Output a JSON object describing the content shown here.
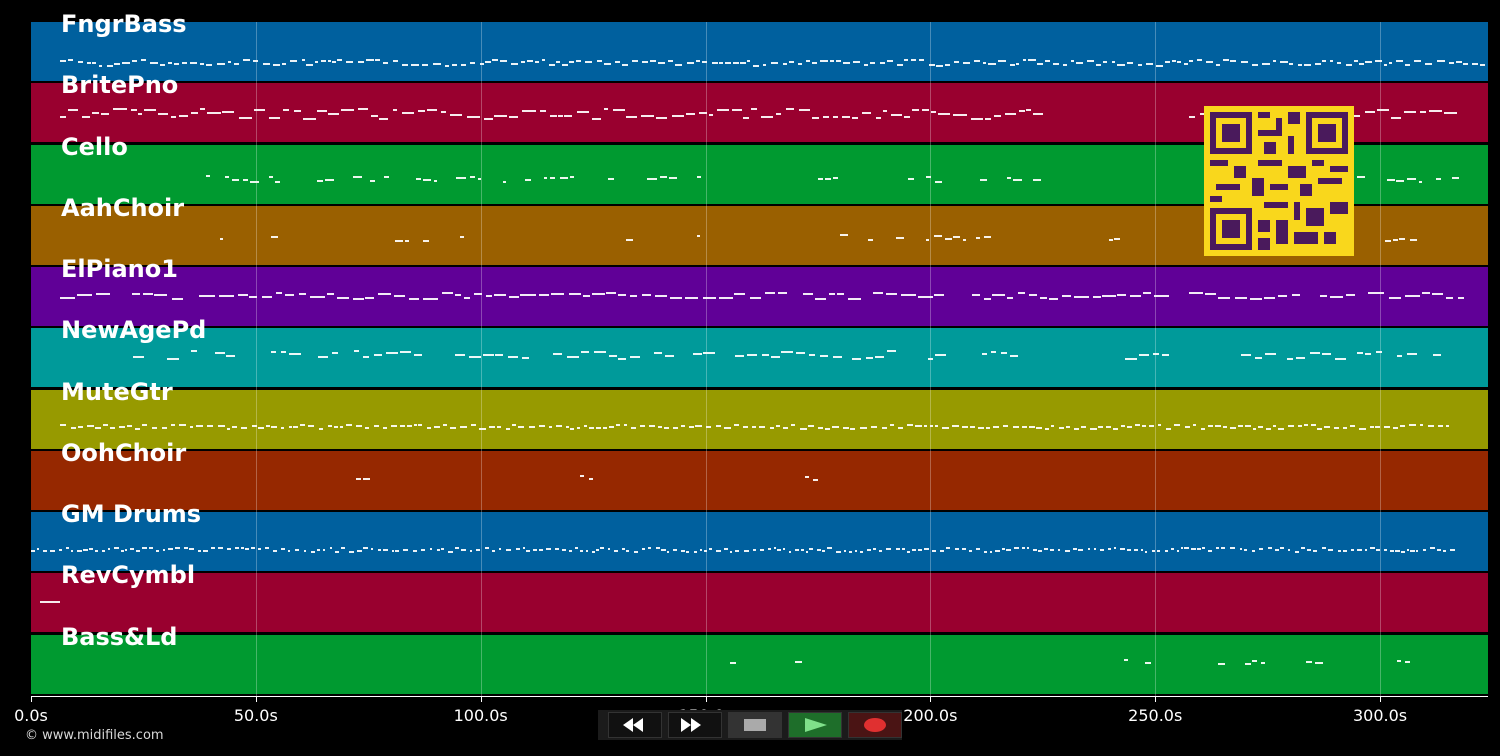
{
  "tracks": [
    {
      "name": "FngrBass",
      "color": "#00609e"
    },
    {
      "name": "BritePno",
      "color": "#99002f"
    },
    {
      "name": "Cello",
      "color": "#009a30"
    },
    {
      "name": "AahChoir",
      "color": "#9a6000"
    },
    {
      "name": "ElPiano1",
      "color": "#600097"
    },
    {
      "name": "NewAgePd",
      "color": "#009a9a"
    },
    {
      "name": "MuteGtr",
      "color": "#979a00"
    },
    {
      "name": "OohChoir",
      "color": "#962800"
    },
    {
      "name": "GM Drums",
      "color": "#00609e"
    },
    {
      "name": "RevCymbl",
      "color": "#99002f"
    },
    {
      "name": "Bass&Ld",
      "color": "#009a30"
    }
  ],
  "timeline": {
    "max_seconds": 324,
    "ticks": [
      "0.0s",
      "50.0s",
      "100.0s",
      "150.0s",
      "200.0s",
      "250.0s",
      "300.0s"
    ],
    "tick_values": [
      0,
      50,
      100,
      150,
      200,
      250,
      300
    ]
  },
  "transport": {
    "rewind_icon": "rewind-icon",
    "forward_icon": "fast-forward-icon",
    "stop_icon": "stop-icon",
    "play_icon": "play-icon",
    "record_icon": "record-icon"
  },
  "copyright": "© www.midifiles.com",
  "overlay": {
    "qr_icon": "qr-code-icon",
    "qr_color": "#f9d71c"
  }
}
